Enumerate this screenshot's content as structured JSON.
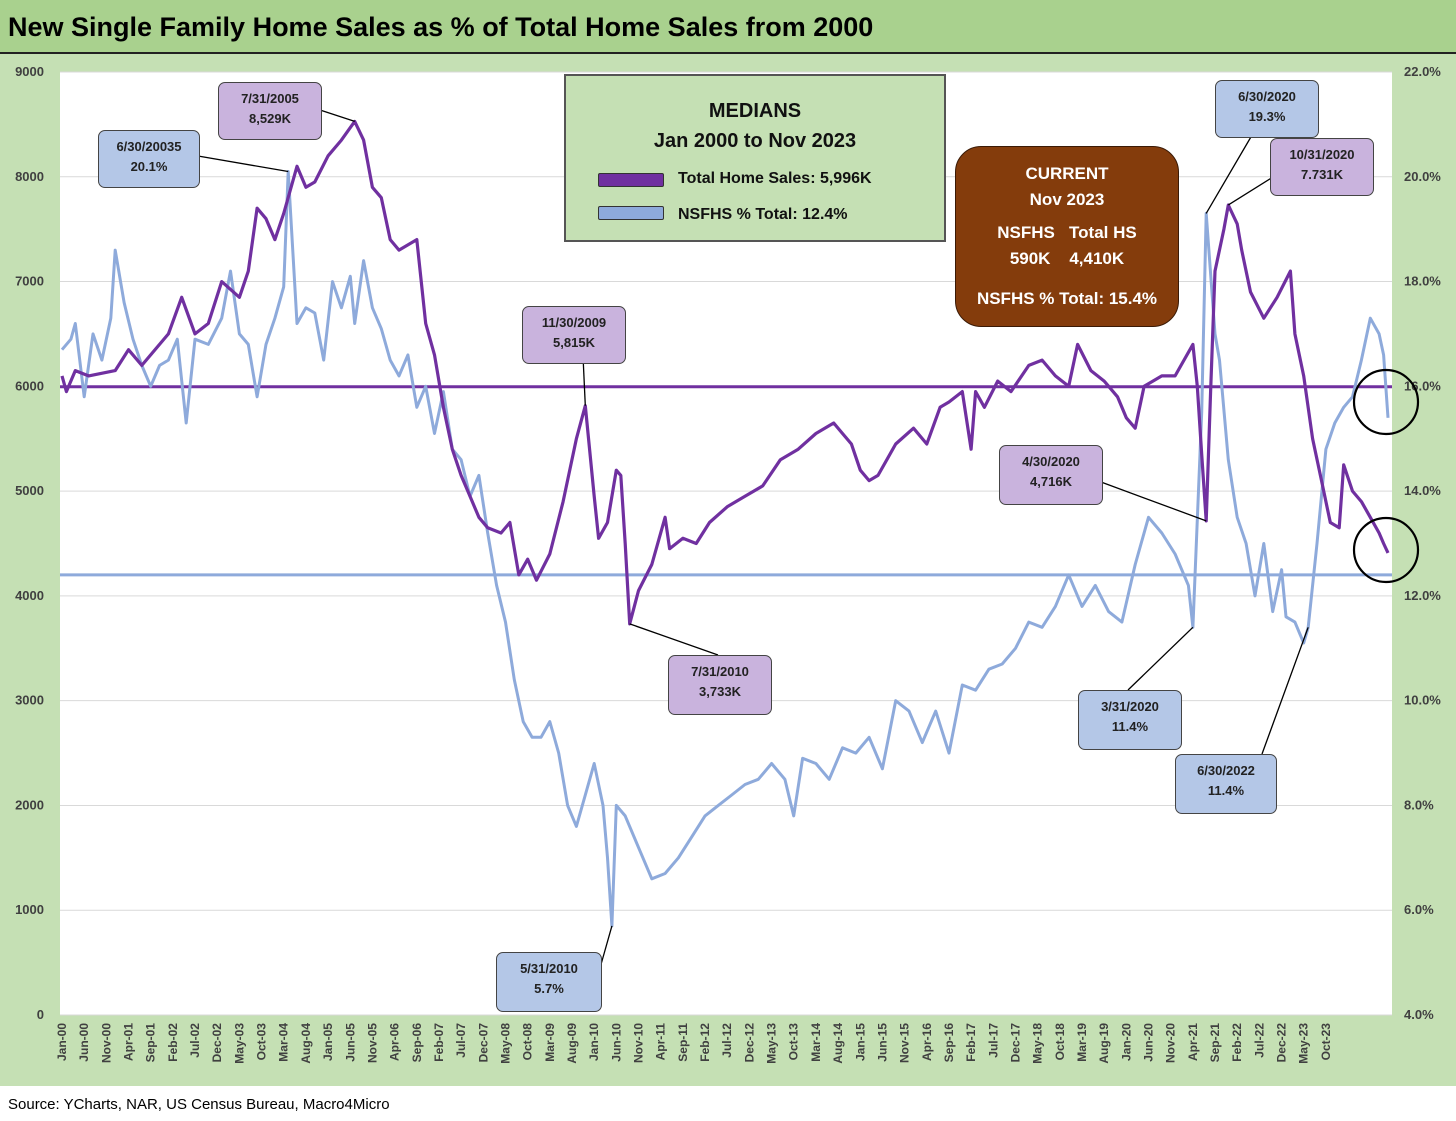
{
  "title": "New Single Family Home Sales as % of Total Home Sales from 2000",
  "source": "Source: YCharts, NAR, US Census Bureau, Macro4Micro",
  "colors": {
    "title_bar": "#a9d18e",
    "background": "#c5e0b4",
    "total_series": "#7030a0",
    "pct_series": "#8eaadb",
    "current_box": "#843c0c",
    "callout_purple": "#c9b3dd",
    "callout_blue": "#b4c7e7"
  },
  "medians_box": {
    "title_line1": "MEDIANS",
    "title_line2": "Jan 2000 to Nov 2023",
    "legend_total": "Total Home Sales: 5,996K",
    "legend_pct": "NSFHS % Total: 12.4%"
  },
  "current_box": {
    "line1": "CURRENT",
    "line2": "Nov 2023",
    "line3": "NSFHS   Total HS",
    "line4": "590K    4,410K",
    "line5": "NSFHS % Total: 15.4%"
  },
  "callouts": [
    {
      "id": "c2005",
      "series": "total",
      "date": "7/31/2005",
      "value": "8,529K"
    },
    {
      "id": "c2003",
      "series": "pct",
      "date": "6/30/20035",
      "value": "20.1%"
    },
    {
      "id": "c2009",
      "series": "total",
      "date": "11/30/2009",
      "value": "5,815K"
    },
    {
      "id": "c2010t",
      "series": "total",
      "date": "7/31/2010",
      "value": "3,733K"
    },
    {
      "id": "c2010p",
      "series": "pct",
      "date": "5/31/2010",
      "value": "5.7%"
    },
    {
      "id": "c2020a",
      "series": "total",
      "date": "4/30/2020",
      "value": "4,716K"
    },
    {
      "id": "c2020m",
      "series": "pct",
      "date": "3/31/2020",
      "value": "11.4%"
    },
    {
      "id": "c2020j",
      "series": "pct",
      "date": "6/30/2020",
      "value": "19.3%"
    },
    {
      "id": "c2020o",
      "series": "total",
      "date": "10/31/2020",
      "value": "7.731K"
    },
    {
      "id": "c2022",
      "series": "pct",
      "date": "6/30/2022",
      "value": "11.4%"
    }
  ],
  "chart_data": {
    "type": "line",
    "title": "New Single Family Home Sales as % of Total Home Sales from 2000",
    "x_start": "Jan-00",
    "x_end": "Nov-23",
    "x_tick_labels": [
      "Jan-00",
      "Jun-00",
      "Nov-00",
      "Apr-01",
      "Sep-01",
      "Feb-02",
      "Jul-02",
      "Dec-02",
      "May-03",
      "Oct-03",
      "Mar-04",
      "Aug-04",
      "Jan-05",
      "Jun-05",
      "Nov-05",
      "Apr-06",
      "Sep-06",
      "Feb-07",
      "Jul-07",
      "Dec-07",
      "May-08",
      "Oct-08",
      "Mar-09",
      "Aug-09",
      "Jan-10",
      "Jun-10",
      "Nov-10",
      "Apr-11",
      "Sep-11",
      "Feb-12",
      "Jul-12",
      "Dec-12",
      "May-13",
      "Oct-13",
      "Mar-14",
      "Aug-14",
      "Jan-15",
      "Jun-15",
      "Nov-15",
      "Apr-16",
      "Sep-16",
      "Feb-17",
      "Jul-17",
      "Dec-17",
      "May-18",
      "Oct-18",
      "Mar-19",
      "Aug-19",
      "Jan-20",
      "Jun-20",
      "Nov-20",
      "Apr-21",
      "Sep-21",
      "Feb-22",
      "Jul-22",
      "Dec-22",
      "May-23",
      "Oct-23"
    ],
    "y_left": {
      "min": 0,
      "max": 9000,
      "step": 1000,
      "ticks": [
        "0",
        "1000",
        "2000",
        "3000",
        "4000",
        "5000",
        "6000",
        "7000",
        "8000",
        "9000"
      ]
    },
    "y_right": {
      "min": 4.0,
      "max": 22.0,
      "step": 2.0,
      "ticks": [
        "4.0%",
        "6.0%",
        "8.0%",
        "10.0%",
        "12.0%",
        "14.0%",
        "16.0%",
        "18.0%",
        "20.0%",
        "22.0%"
      ]
    },
    "grid": true,
    "series": [
      {
        "name": "Total Home Sales",
        "axis": "left",
        "unit": "thousands",
        "median": 5996,
        "anchors": [
          [
            0,
            6100
          ],
          [
            1,
            5950
          ],
          [
            3,
            6150
          ],
          [
            6,
            6100
          ],
          [
            12,
            6150
          ],
          [
            15,
            6350
          ],
          [
            18,
            6200
          ],
          [
            24,
            6500
          ],
          [
            27,
            6850
          ],
          [
            30,
            6500
          ],
          [
            33,
            6600
          ],
          [
            36,
            7000
          ],
          [
            40,
            6850
          ],
          [
            42,
            7100
          ],
          [
            44,
            7700
          ],
          [
            46,
            7600
          ],
          [
            48,
            7400
          ],
          [
            50,
            7650
          ],
          [
            53,
            8100
          ],
          [
            55,
            7900
          ],
          [
            57,
            7950
          ],
          [
            60,
            8200
          ],
          [
            63,
            8350
          ],
          [
            66,
            8529
          ],
          [
            68,
            8350
          ],
          [
            70,
            7900
          ],
          [
            72,
            7800
          ],
          [
            74,
            7400
          ],
          [
            76,
            7300
          ],
          [
            80,
            7400
          ],
          [
            82,
            6600
          ],
          [
            84,
            6300
          ],
          [
            86,
            5800
          ],
          [
            88,
            5400
          ],
          [
            90,
            5150
          ],
          [
            92,
            4950
          ],
          [
            94,
            4750
          ],
          [
            96,
            4650
          ],
          [
            99,
            4600
          ],
          [
            101,
            4700
          ],
          [
            103,
            4200
          ],
          [
            105,
            4350
          ],
          [
            107,
            4150
          ],
          [
            110,
            4400
          ],
          [
            113,
            4900
          ],
          [
            116,
            5500
          ],
          [
            118,
            5815
          ],
          [
            120,
            4950
          ],
          [
            121,
            4550
          ],
          [
            123,
            4700
          ],
          [
            125,
            5200
          ],
          [
            126,
            5150
          ],
          [
            127,
            4500
          ],
          [
            128,
            3733
          ],
          [
            130,
            4050
          ],
          [
            133,
            4300
          ],
          [
            136,
            4750
          ],
          [
            137,
            4450
          ],
          [
            140,
            4550
          ],
          [
            143,
            4500
          ],
          [
            146,
            4700
          ],
          [
            150,
            4850
          ],
          [
            154,
            4950
          ],
          [
            158,
            5050
          ],
          [
            162,
            5300
          ],
          [
            166,
            5400
          ],
          [
            170,
            5550
          ],
          [
            174,
            5650
          ],
          [
            176,
            5550
          ],
          [
            178,
            5450
          ],
          [
            180,
            5200
          ],
          [
            182,
            5100
          ],
          [
            184,
            5150
          ],
          [
            188,
            5450
          ],
          [
            192,
            5600
          ],
          [
            195,
            5450
          ],
          [
            198,
            5800
          ],
          [
            200,
            5850
          ],
          [
            203,
            5950
          ],
          [
            205,
            5400
          ],
          [
            206,
            5950
          ],
          [
            208,
            5800
          ],
          [
            211,
            6050
          ],
          [
            214,
            5950
          ],
          [
            218,
            6200
          ],
          [
            221,
            6250
          ],
          [
            224,
            6100
          ],
          [
            227,
            6000
          ],
          [
            229,
            6400
          ],
          [
            232,
            6150
          ],
          [
            235,
            6050
          ],
          [
            238,
            5900
          ],
          [
            240,
            5700
          ],
          [
            242,
            5600
          ],
          [
            244,
            6000
          ],
          [
            248,
            6100
          ],
          [
            251,
            6100
          ],
          [
            253,
            6250
          ],
          [
            255,
            6400
          ],
          [
            256,
            6000
          ],
          [
            257,
            5350
          ],
          [
            258,
            4716
          ],
          [
            259,
            5950
          ],
          [
            260,
            7100
          ],
          [
            262,
            7500
          ],
          [
            263,
            7731
          ],
          [
            265,
            7550
          ],
          [
            266,
            7300
          ],
          [
            268,
            6900
          ],
          [
            271,
            6650
          ],
          [
            274,
            6850
          ],
          [
            277,
            7100
          ],
          [
            278,
            6500
          ],
          [
            280,
            6100
          ],
          [
            282,
            5500
          ],
          [
            284,
            5100
          ],
          [
            286,
            4700
          ],
          [
            288,
            4650
          ],
          [
            289,
            5250
          ],
          [
            291,
            5000
          ],
          [
            293,
            4900
          ],
          [
            295,
            4750
          ],
          [
            297,
            4600
          ],
          [
            298,
            4500
          ],
          [
            299,
            4410
          ]
        ]
      },
      {
        "name": "NSFHS % Total",
        "axis": "right",
        "unit": "percent",
        "median": 12.4,
        "anchors": [
          [
            0,
            16.7
          ],
          [
            2,
            16.9
          ],
          [
            3,
            17.2
          ],
          [
            5,
            15.8
          ],
          [
            7,
            17.0
          ],
          [
            9,
            16.5
          ],
          [
            11,
            17.3
          ],
          [
            12,
            18.6
          ],
          [
            14,
            17.6
          ],
          [
            16,
            16.9
          ],
          [
            18,
            16.4
          ],
          [
            20,
            16.0
          ],
          [
            22,
            16.4
          ],
          [
            24,
            16.5
          ],
          [
            26,
            16.9
          ],
          [
            28,
            15.3
          ],
          [
            30,
            16.9
          ],
          [
            33,
            16.8
          ],
          [
            36,
            17.3
          ],
          [
            38,
            18.2
          ],
          [
            40,
            17.0
          ],
          [
            42,
            16.8
          ],
          [
            44,
            15.8
          ],
          [
            46,
            16.8
          ],
          [
            48,
            17.3
          ],
          [
            50,
            17.9
          ],
          [
            51,
            20.1
          ],
          [
            53,
            17.2
          ],
          [
            55,
            17.5
          ],
          [
            57,
            17.4
          ],
          [
            59,
            16.5
          ],
          [
            61,
            18.0
          ],
          [
            63,
            17.5
          ],
          [
            65,
            18.1
          ],
          [
            66,
            17.2
          ],
          [
            68,
            18.4
          ],
          [
            70,
            17.5
          ],
          [
            72,
            17.1
          ],
          [
            74,
            16.5
          ],
          [
            76,
            16.2
          ],
          [
            78,
            16.6
          ],
          [
            80,
            15.6
          ],
          [
            82,
            16.0
          ],
          [
            84,
            15.1
          ],
          [
            86,
            15.9
          ],
          [
            88,
            14.8
          ],
          [
            90,
            14.6
          ],
          [
            92,
            13.9
          ],
          [
            94,
            14.3
          ],
          [
            96,
            13.2
          ],
          [
            98,
            12.2
          ],
          [
            100,
            11.5
          ],
          [
            102,
            10.4
          ],
          [
            104,
            9.6
          ],
          [
            106,
            9.3
          ],
          [
            108,
            9.3
          ],
          [
            110,
            9.6
          ],
          [
            112,
            9.0
          ],
          [
            114,
            8.0
          ],
          [
            116,
            7.6
          ],
          [
            118,
            8.2
          ],
          [
            120,
            8.8
          ],
          [
            122,
            8.0
          ],
          [
            123,
            7.0
          ],
          [
            124,
            5.7
          ],
          [
            125,
            8.0
          ],
          [
            127,
            7.8
          ],
          [
            130,
            7.2
          ],
          [
            133,
            6.6
          ],
          [
            136,
            6.7
          ],
          [
            139,
            7.0
          ],
          [
            142,
            7.4
          ],
          [
            145,
            7.8
          ],
          [
            148,
            8.0
          ],
          [
            151,
            8.2
          ],
          [
            154,
            8.4
          ],
          [
            157,
            8.5
          ],
          [
            160,
            8.8
          ],
          [
            163,
            8.5
          ],
          [
            165,
            7.8
          ],
          [
            167,
            8.9
          ],
          [
            170,
            8.8
          ],
          [
            173,
            8.5
          ],
          [
            176,
            9.1
          ],
          [
            179,
            9.0
          ],
          [
            182,
            9.3
          ],
          [
            185,
            8.7
          ],
          [
            188,
            10.0
          ],
          [
            191,
            9.8
          ],
          [
            194,
            9.2
          ],
          [
            197,
            9.8
          ],
          [
            200,
            9.0
          ],
          [
            203,
            10.3
          ],
          [
            206,
            10.2
          ],
          [
            209,
            10.6
          ],
          [
            212,
            10.7
          ],
          [
            215,
            11.0
          ],
          [
            218,
            11.5
          ],
          [
            221,
            11.4
          ],
          [
            224,
            11.8
          ],
          [
            227,
            12.4
          ],
          [
            230,
            11.8
          ],
          [
            233,
            12.2
          ],
          [
            236,
            11.7
          ],
          [
            239,
            11.5
          ],
          [
            242,
            12.6
          ],
          [
            245,
            13.5
          ],
          [
            248,
            13.2
          ],
          [
            251,
            12.8
          ],
          [
            254,
            12.2
          ],
          [
            255,
            11.4
          ],
          [
            257,
            15.5
          ],
          [
            258,
            19.3
          ],
          [
            260,
            17.0
          ],
          [
            261,
            16.5
          ],
          [
            263,
            14.6
          ],
          [
            265,
            13.5
          ],
          [
            267,
            13.0
          ],
          [
            269,
            12.0
          ],
          [
            271,
            13.0
          ],
          [
            273,
            11.7
          ],
          [
            275,
            12.5
          ],
          [
            276,
            11.6
          ],
          [
            278,
            11.5
          ],
          [
            280,
            11.1
          ],
          [
            281,
            11.4
          ],
          [
            283,
            13.0
          ],
          [
            285,
            14.8
          ],
          [
            287,
            15.3
          ],
          [
            289,
            15.6
          ],
          [
            291,
            15.8
          ],
          [
            293,
            16.5
          ],
          [
            295,
            17.3
          ],
          [
            297,
            17.0
          ],
          [
            298,
            16.6
          ],
          [
            299,
            15.4
          ]
        ]
      }
    ]
  }
}
